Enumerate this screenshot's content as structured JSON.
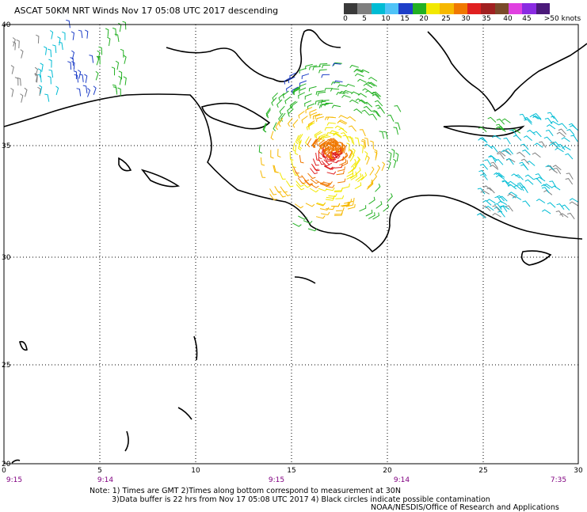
{
  "title": "ASCAT 50KM NRT Winds   Nov 17 05:08 UTC 2017 descending",
  "scale": {
    "colors": [
      "#3a3a3a",
      "#7f7f7f",
      "#00bcd4",
      "#4fc3f7",
      "#1e3fc8",
      "#22b022",
      "#f2e800",
      "#f6b800",
      "#f07800",
      "#e02020",
      "#a02020",
      "#7a4a2a",
      "#e040e0",
      "#8a2be2",
      "#4b1a7a"
    ],
    "labels": [
      "0",
      "5",
      "10",
      "15",
      "20",
      "25",
      "30",
      "35",
      "40",
      "45",
      ">50 knots"
    ]
  },
  "map": {
    "lon_ticks": [
      "0",
      "5",
      "10",
      "15",
      "20",
      "25",
      "30"
    ],
    "lat_ticks": [
      "40",
      "35",
      "30",
      "25",
      "20"
    ],
    "pass_times": [
      "9:15",
      "9:14",
      "9:15",
      "9:14",
      "7:35"
    ],
    "wind_colors": {
      "calm": "#7f7f7f",
      "light": "#00bcd4",
      "moderate": "#1e3fc8",
      "fresh": "#22b022",
      "strong": "#f2e800",
      "stronger": "#f6b800",
      "gale": "#f07800",
      "severe": "#e02020"
    }
  },
  "notes": {
    "line1": "Note: 1) Times are GMT 2)Times along bottom correspond to measurement at 30N",
    "line2": "3)Data buffer is 22 hrs from Nov 17 05:08 UTC 2017 4) Black circles indicate possible contamination",
    "line3": "NOAA/NESDIS/Office of Research and Applications"
  }
}
